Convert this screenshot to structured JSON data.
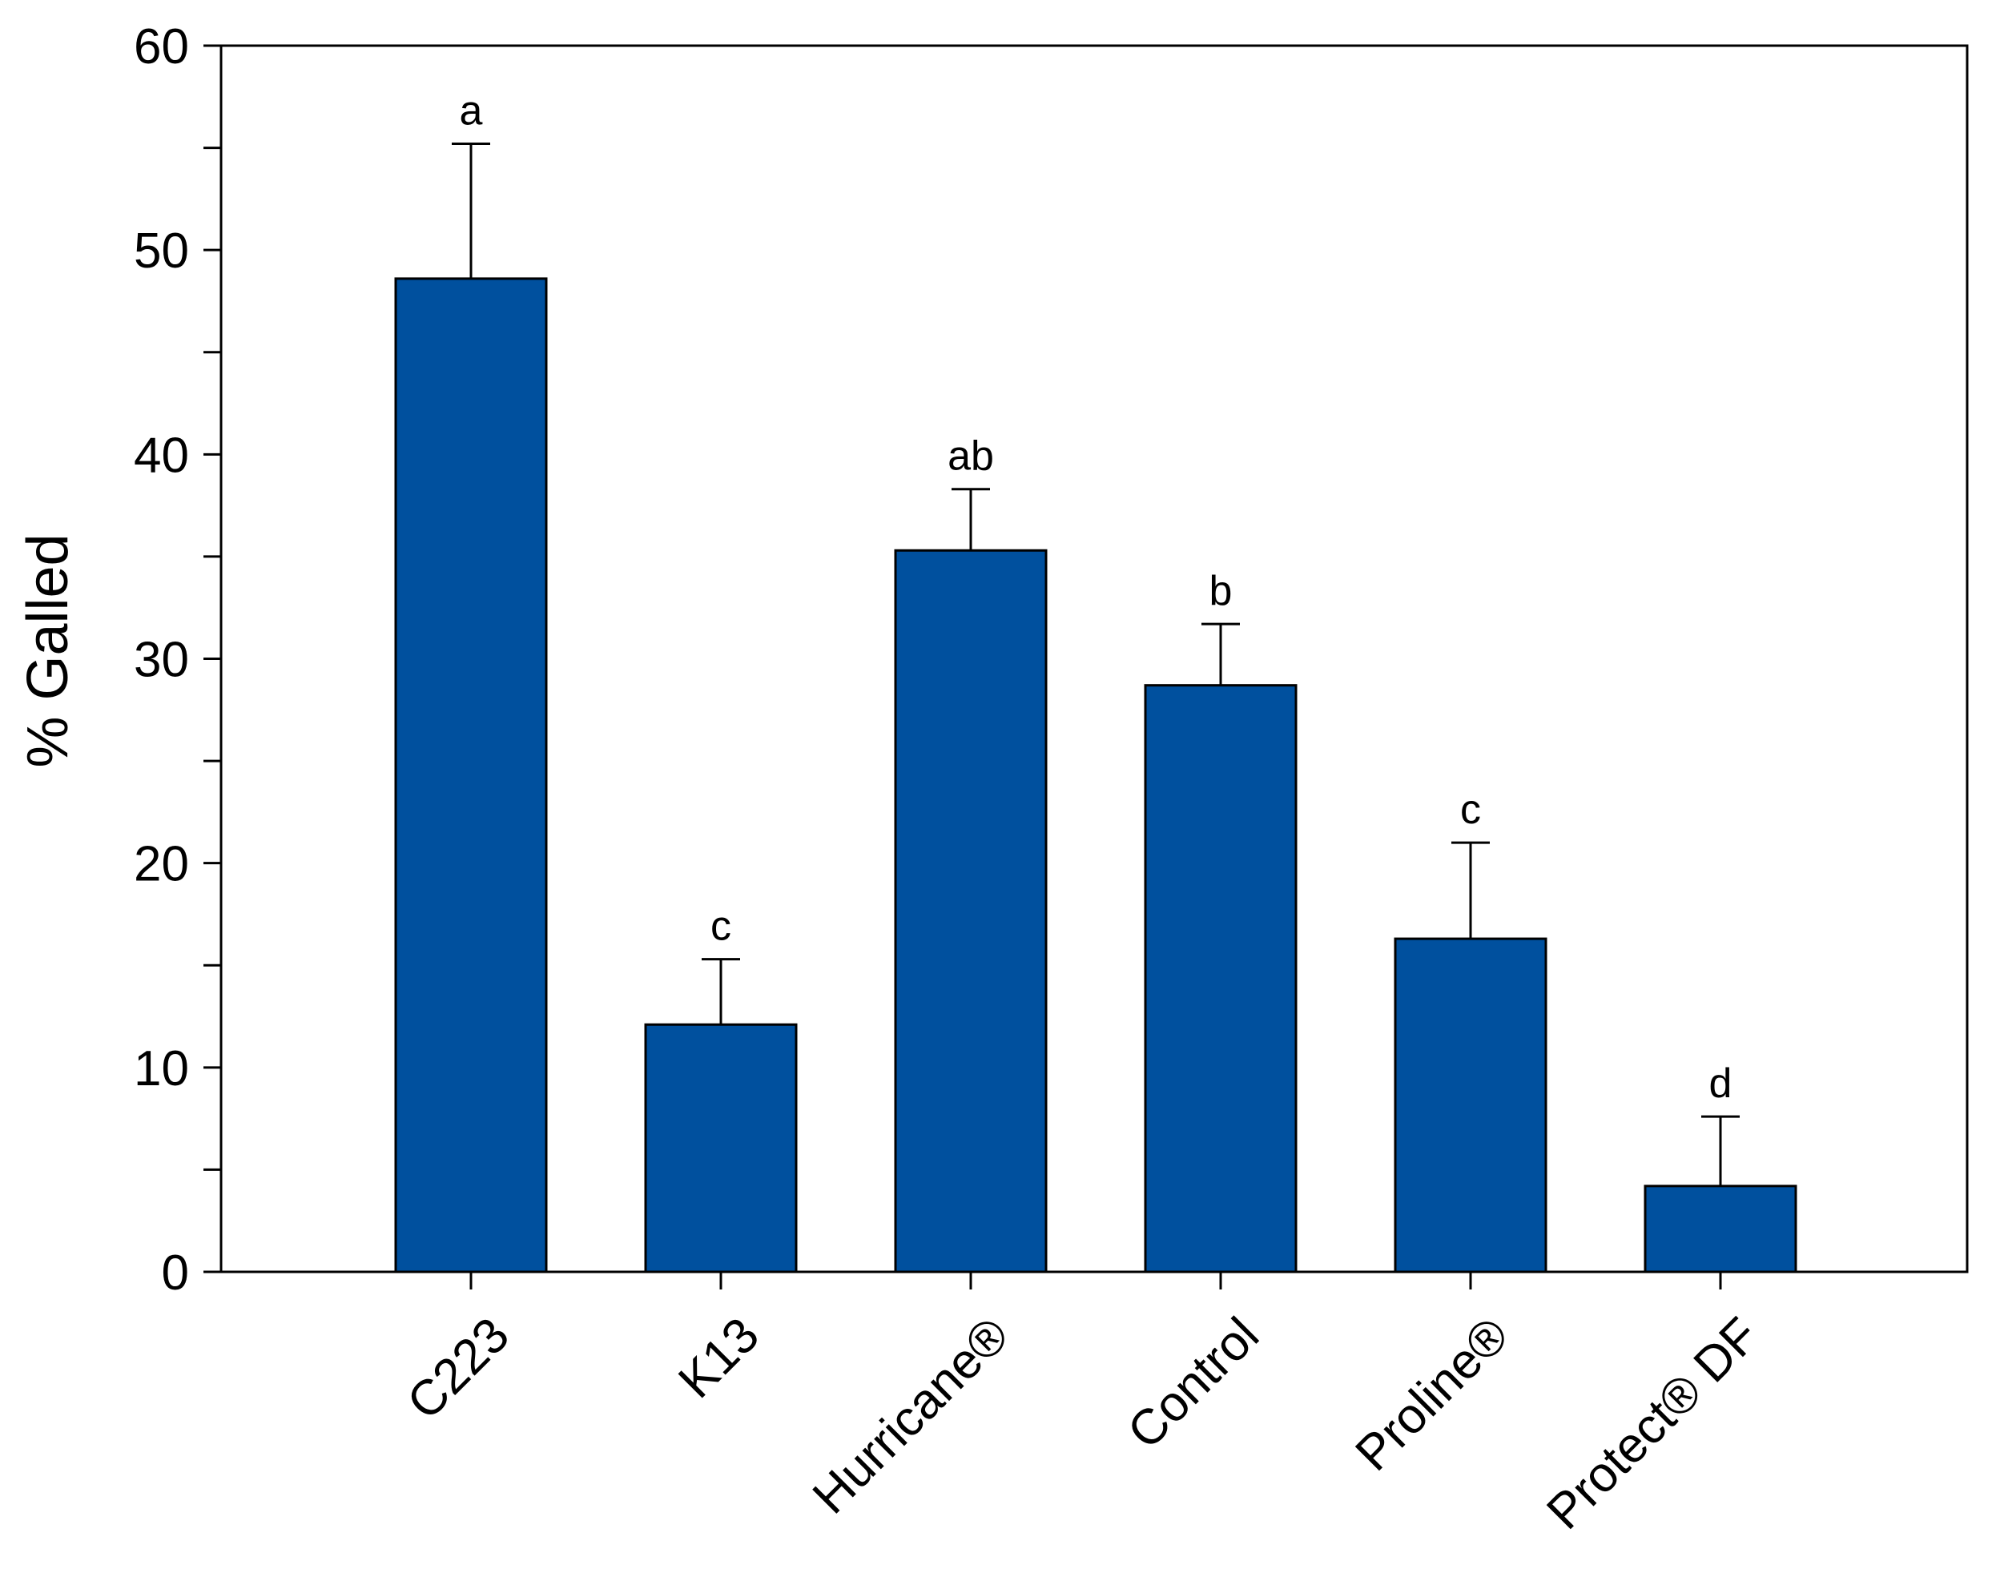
{
  "chart_data": {
    "type": "bar",
    "title": "",
    "xlabel": "",
    "ylabel": "% Galled",
    "ylim": [
      0,
      60
    ],
    "yticks": [
      0,
      10,
      20,
      30,
      40,
      50,
      60
    ],
    "ytick_labels": [
      "0",
      "10",
      "20",
      "30",
      "40",
      "50",
      "60"
    ],
    "minor_tick_step": 5,
    "grid": false,
    "bar_color": "#00509E",
    "categories": [
      "C223",
      "K13",
      "Hurricane®",
      "Control",
      "Proline®",
      "Protect® DF"
    ],
    "values": [
      48.6,
      12.1,
      35.3,
      28.7,
      16.3,
      4.2
    ],
    "errors": [
      6.6,
      3.2,
      3.0,
      3.0,
      4.7,
      3.4
    ],
    "significance_letters": [
      "a",
      "c",
      "ab",
      "b",
      "c",
      "d"
    ]
  }
}
